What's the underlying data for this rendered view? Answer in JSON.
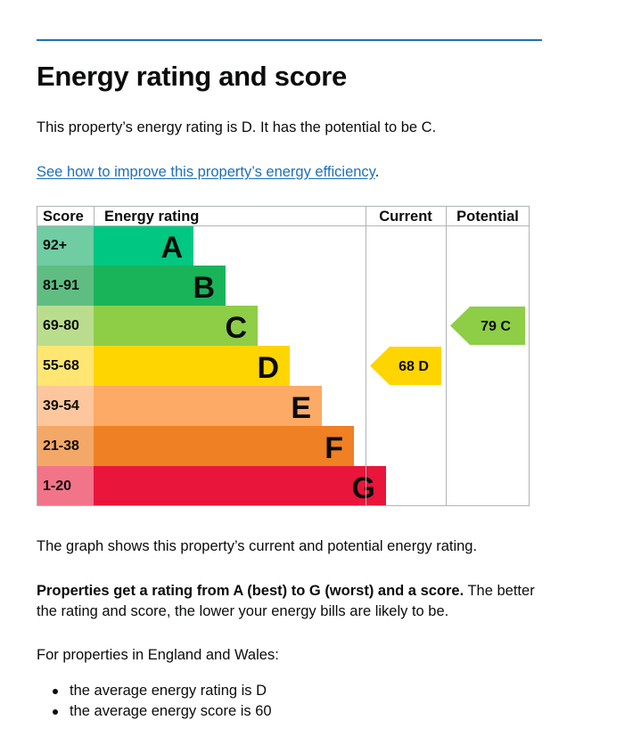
{
  "heading": "Energy rating and score",
  "lead": "This property’s energy rating is D. It has the potential to be C.",
  "link_text": "See how to improve this property’s energy efficiency",
  "link_suffix": ".",
  "chart_data": {
    "type": "table",
    "headers": {
      "score": "Score",
      "rating": "Energy rating",
      "current": "Current",
      "potential": "Potential"
    },
    "bands": [
      {
        "band": "A",
        "score": "92+",
        "color": "#00c781",
        "label_bg": "#6fcca3",
        "text_color": "#0b0c0c"
      },
      {
        "band": "B",
        "score": "81-91",
        "color": "#19b459",
        "label_bg": "#5fbd82",
        "text_color": "#0b0c0c"
      },
      {
        "band": "C",
        "score": "69-80",
        "color": "#8dce46",
        "label_bg": "#badd8d",
        "text_color": "#0b0c0c"
      },
      {
        "band": "D",
        "score": "55-68",
        "color": "#ffd500",
        "label_bg": "#ffe571",
        "text_color": "#0b0c0c"
      },
      {
        "band": "E",
        "score": "39-54",
        "color": "#fcaa65",
        "label_bg": "#fdc69c",
        "text_color": "#0b0c0c"
      },
      {
        "band": "F",
        "score": "21-38",
        "color": "#ef8023",
        "label_bg": "#f4a868",
        "text_color": "#0b0c0c"
      },
      {
        "band": "G",
        "score": "1-20",
        "color": "#e9153b",
        "label_bg": "#f27489",
        "text_color": "#0b0c0c"
      }
    ],
    "current": {
      "score": 68,
      "band": "D",
      "label": "68  D"
    },
    "potential": {
      "score": 79,
      "band": "C",
      "label": "79  C"
    }
  },
  "graph_note": "The graph shows this property’s current and potential energy rating.",
  "rating_note_bold": "Properties get a rating from A (best) to G (worst) and a score.",
  "rating_note_rest": " The better the rating and score, the lower your energy bills are likely to be.",
  "region_note": "For properties in England and Wales:",
  "facts": [
    "the average energy rating is D",
    "the average energy score is 60"
  ]
}
